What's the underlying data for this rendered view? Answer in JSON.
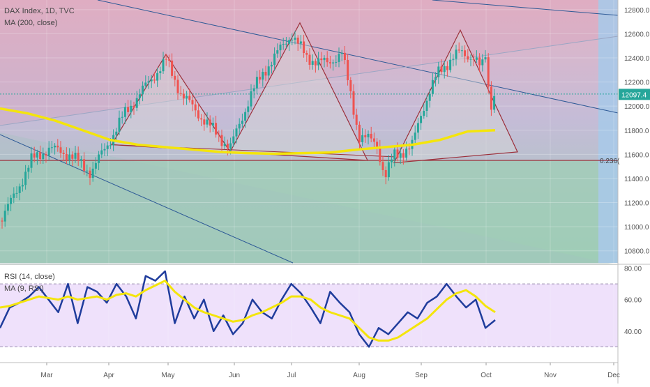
{
  "chart_data": [
    {
      "type": "candlestick",
      "title": "DAX Index, 1D, TVC",
      "indicator_label": "MA (200, close)",
      "last_price_label": "12097.4",
      "fib_label": "0.236(",
      "y_ticks": [
        "12800.0",
        "12600.0",
        "12400.0",
        "12200.0",
        "12000.0",
        "11800.0",
        "11600.0",
        "11400.0",
        "11200.0",
        "11000.0",
        "10800.0"
      ],
      "ylim": [
        10700,
        12880
      ],
      "x_ticks": [
        "Mar",
        "Apr",
        "May",
        "Jun",
        "Jul",
        "Aug",
        "Sep",
        "Oct",
        "Nov",
        "Dec"
      ],
      "ma200": [
        11980,
        11940,
        11880,
        11800,
        11720,
        11680,
        11660,
        11640,
        11620,
        11610,
        11605,
        11610,
        11615,
        11640,
        11660,
        11680,
        11720,
        11790,
        11800
      ],
      "pattern_points": {
        "head_and_shoulders": [
          [
            11680,
            "Apr"
          ],
          [
            12430,
            "May"
          ],
          [
            11620,
            "Jun"
          ],
          [
            12690,
            "Jul"
          ],
          [
            11530,
            "Aug"
          ],
          [
            12630,
            "Sep"
          ],
          [
            11620,
            "Oct"
          ]
        ]
      },
      "colors": {
        "up": "#26a69a",
        "down": "#ef5350",
        "ma": "#f4e50b",
        "pattern": "#9c2f3a",
        "channel": "#2e5a96"
      }
    },
    {
      "type": "line",
      "title": "RSI (14, close)",
      "indicator_label": "MA (9, RSI)",
      "y_ticks": [
        "80.00",
        "60.00",
        "40.00"
      ],
      "ylim": [
        20,
        82
      ],
      "band": [
        30,
        70
      ],
      "series": [
        {
          "name": "RSI (14, close)",
          "color": "#1f3c9c",
          "values": [
            42,
            55,
            58,
            62,
            68,
            60,
            52,
            70,
            45,
            68,
            65,
            58,
            70,
            62,
            48,
            75,
            72,
            78,
            45,
            62,
            48,
            60,
            40,
            50,
            38,
            45,
            60,
            52,
            48,
            60,
            70,
            64,
            55,
            45,
            65,
            58,
            52,
            38,
            30,
            42,
            38,
            45,
            52,
            48,
            58,
            62,
            70,
            62,
            55,
            60,
            42,
            47
          ]
        },
        {
          "name": "MA (9, RSI)",
          "color": "#f4e50b",
          "values": [
            55,
            56,
            58,
            60,
            62,
            61,
            60,
            62,
            60,
            61,
            62,
            60,
            63,
            64,
            62,
            66,
            69,
            72,
            65,
            60,
            55,
            52,
            50,
            48,
            46,
            47,
            50,
            52,
            55,
            58,
            62,
            62,
            60,
            55,
            52,
            50,
            48,
            42,
            36,
            34,
            34,
            36,
            40,
            44,
            48,
            54,
            60,
            64,
            66,
            62,
            56,
            52
          ]
        }
      ]
    }
  ]
}
